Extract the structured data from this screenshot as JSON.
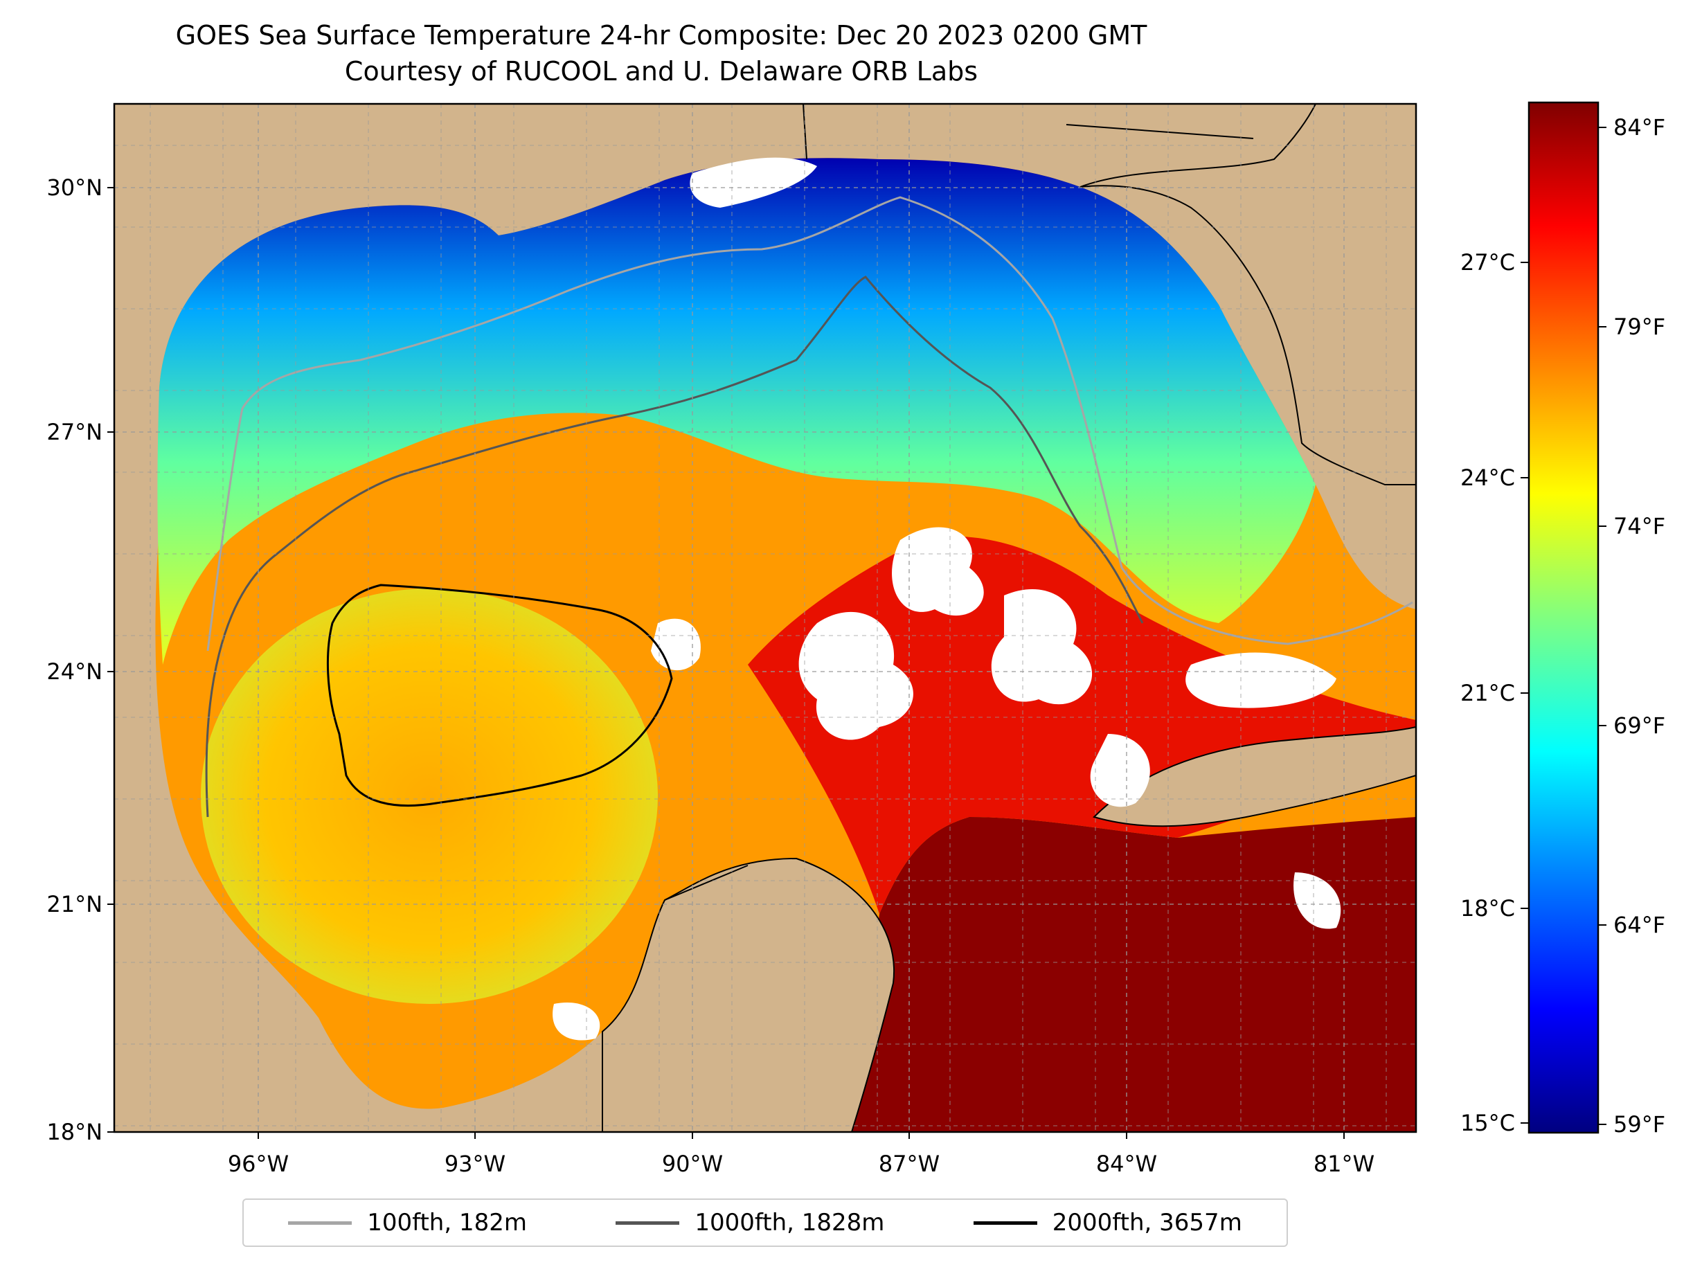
{
  "title": {
    "line1": "GOES Sea Surface Temperature 24-hr Composite: Dec 20 2023 0200 GMT",
    "line2": "Courtesy of RUCOOL and U. Delaware ORB Labs"
  },
  "map": {
    "lat_ticks": [
      "30°N",
      "27°N",
      "24°N",
      "21°N",
      "18°N"
    ],
    "lon_ticks": [
      "96°W",
      "93°W",
      "90°W",
      "87°W",
      "84°W",
      "81°W"
    ],
    "colors": {
      "land": "#d2b48c",
      "no_data": "#ffffff",
      "grid": "#999999"
    }
  },
  "colorbar": {
    "celsius_ticks": [
      "27°C",
      "24°C",
      "21°C",
      "18°C",
      "15°C"
    ],
    "fahrenheit_ticks": [
      "84°F",
      "79°F",
      "74°F",
      "69°F",
      "64°F",
      "59°F"
    ],
    "colormap": [
      "#000080",
      "#0000ff",
      "#0080ff",
      "#00ffff",
      "#80ff80",
      "#ffff00",
      "#ff8000",
      "#ff0000",
      "#800000"
    ]
  },
  "legend": [
    {
      "label": "100fth, 182m",
      "color": "#a6a6a6"
    },
    {
      "label": "1000fth, 1828m",
      "color": "#555555"
    },
    {
      "label": "2000fth, 3657m",
      "color": "#000000"
    }
  ]
}
